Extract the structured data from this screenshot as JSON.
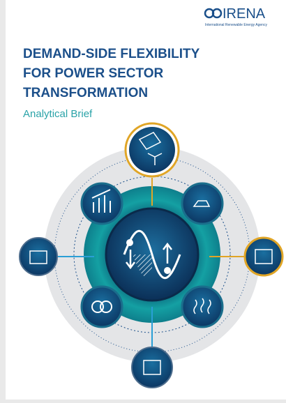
{
  "header": {
    "logo_text": "IRENA",
    "agency": "International Renewable Energy Agency"
  },
  "title": {
    "lines": [
      "DEMAND-SIDE FLEXIBILITY",
      "FOR POWER SECTOR",
      "TRANSFORMATION"
    ]
  },
  "subtitle": "Analytical Brief"
}
